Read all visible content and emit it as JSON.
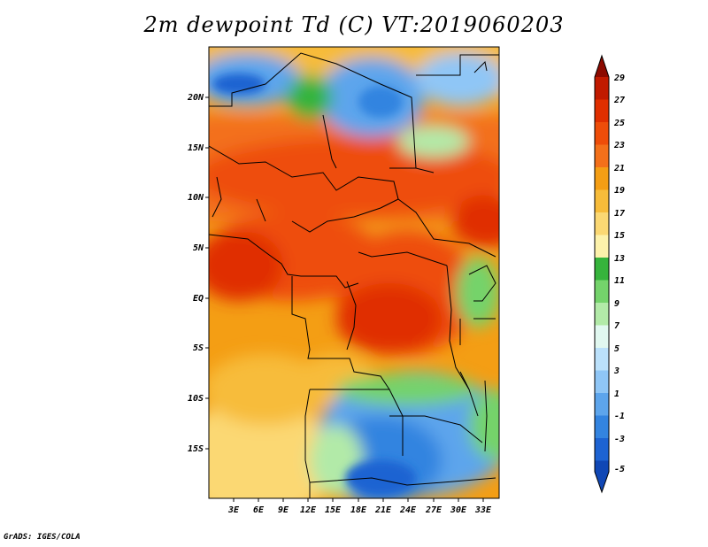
{
  "title": "2m dewpoint Td (C) VT:2019060203",
  "credit": "GrADS: IGES/COLA",
  "map": {
    "lat_ticks": [
      "20N",
      "15N",
      "10N",
      "5N",
      "EQ",
      "5S",
      "10S",
      "15S"
    ],
    "lon_ticks": [
      "3E",
      "6E",
      "9E",
      "12E",
      "15E",
      "18E",
      "21E",
      "24E",
      "27E",
      "30E",
      "33E"
    ]
  },
  "colorbar": {
    "labels": [
      "29",
      "27",
      "25",
      "23",
      "21",
      "19",
      "17",
      "15",
      "13",
      "11",
      "9",
      "7",
      "5",
      "3",
      "1",
      "-1",
      "-3",
      "-5"
    ],
    "colors": [
      "#8c0a00",
      "#c11a00",
      "#e02f00",
      "#ee4d09",
      "#f3701a",
      "#f49e14",
      "#f7bc3a",
      "#fbd873",
      "#fdf2ab",
      "#36b43c",
      "#74d36b",
      "#b2eaa8",
      "#e1f8f0",
      "#bbe1fb",
      "#8fc6f6",
      "#5da5ec",
      "#3384e0",
      "#1d63d2",
      "#1047b5"
    ]
  }
}
